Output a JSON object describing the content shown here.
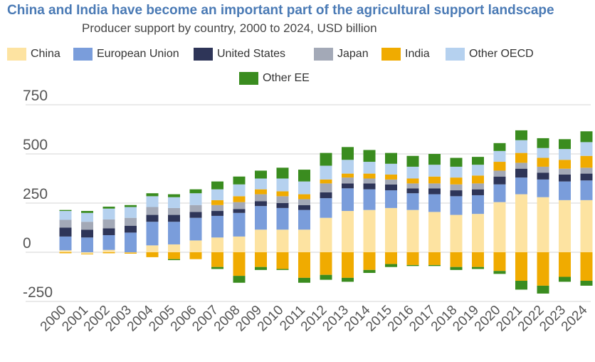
{
  "header": {
    "title": "China and India have become an important part of the agricultural support landscape",
    "subtitle": "Producer support by country, 2000 to 2024, USD billion"
  },
  "colors": {
    "China": "#fde3a1",
    "European Union": "#7a9ddb",
    "United States": "#2e3558",
    "Japan": "#a3a9b7",
    "India": "#f0ab00",
    "Other OECD": "#b5d1ef",
    "Other EE": "#3a8c1f",
    "gridline": "#d4d4d4",
    "axis_text": "#555555"
  },
  "legend": [
    {
      "label": "China",
      "color": "#fde3a1"
    },
    {
      "label": "European Union",
      "color": "#7a9ddb"
    },
    {
      "label": "United States",
      "color": "#2e3558"
    },
    {
      "label": "Japan",
      "color": "#a3a9b7"
    },
    {
      "label": "India",
      "color": "#f0ab00"
    },
    {
      "label": "Other OECD",
      "color": "#b5d1ef"
    },
    {
      "label": "Other EE",
      "color": "#3a8c1f"
    }
  ],
  "chart_data": {
    "type": "bar",
    "stacked": true,
    "title": "China and India have become an important part of the agricultural support landscape",
    "subtitle": "Producer support by country, 2000 to 2024, USD billion",
    "xlabel": "",
    "ylabel": "",
    "ylim": [
      -250,
      750
    ],
    "yticks": [
      -250,
      0,
      250,
      500,
      750
    ],
    "ytick_labels": [
      "-250",
      "0",
      "250",
      "500",
      "750"
    ],
    "grid": true,
    "legend_position": "top",
    "categories": [
      "2000",
      "2001",
      "2002",
      "2003",
      "2004",
      "2005",
      "2006",
      "2007",
      "2008",
      "2009",
      "2010",
      "2011",
      "2012",
      "2013",
      "2014",
      "2015",
      "2016",
      "2017",
      "2018",
      "2019",
      "2020",
      "2021",
      "2022",
      "2023",
      "2024"
    ],
    "series": [
      {
        "name": "China",
        "positive": [
          10,
          -8,
          12,
          -2,
          35,
          40,
          60,
          75,
          80,
          115,
          115,
          115,
          175,
          210,
          215,
          225,
          215,
          205,
          190,
          195,
          255,
          295,
          280,
          265,
          265
        ]
      },
      {
        "name": "European Union",
        "positive": [
          70,
          75,
          75,
          100,
          120,
          115,
          115,
          110,
          120,
          120,
          110,
          100,
          100,
          115,
          105,
          90,
          85,
          90,
          95,
          95,
          90,
          85,
          90,
          95,
          100
        ]
      },
      {
        "name": "United States",
        "positive": [
          45,
          40,
          35,
          35,
          35,
          35,
          30,
          25,
          20,
          25,
          25,
          25,
          30,
          25,
          30,
          30,
          25,
          30,
          30,
          30,
          40,
          45,
          35,
          35,
          35
        ]
      },
      {
        "name": "Japan",
        "positive": [
          40,
          40,
          45,
          40,
          40,
          35,
          35,
          30,
          35,
          35,
          35,
          30,
          45,
          30,
          25,
          25,
          25,
          25,
          30,
          30,
          30,
          30,
          30,
          30,
          30
        ]
      },
      {
        "name": "India",
        "positive": [
          0,
          0,
          0,
          0,
          0,
          0,
          0,
          25,
          30,
          25,
          25,
          25,
          20,
          20,
          25,
          25,
          25,
          35,
          35,
          40,
          45,
          50,
          45,
          45,
          60
        ]
      },
      {
        "name": "Other OECD",
        "positive": [
          45,
          45,
          55,
          55,
          55,
          55,
          60,
          55,
          60,
          55,
          65,
          65,
          70,
          70,
          60,
          55,
          60,
          60,
          55,
          55,
          55,
          65,
          50,
          55,
          70
        ]
      },
      {
        "name": "Other EE",
        "positive": [
          5,
          10,
          10,
          10,
          15,
          15,
          20,
          40,
          40,
          40,
          55,
          60,
          65,
          65,
          60,
          55,
          55,
          55,
          45,
          40,
          40,
          50,
          50,
          50,
          55
        ]
      },
      {
        "name": "India",
        "negative": [
          -5,
          -3,
          -5,
          -5,
          -25,
          -35,
          -35,
          -75,
          -120,
          -75,
          -85,
          -130,
          -115,
          -130,
          -90,
          -60,
          -65,
          -65,
          -75,
          -75,
          -95,
          -145,
          -170,
          -125,
          -145
        ]
      },
      {
        "name": "Other EE",
        "negative": [
          0,
          0,
          0,
          0,
          0,
          -5,
          0,
          -10,
          -35,
          -15,
          -5,
          -25,
          -25,
          -20,
          -15,
          -15,
          -5,
          -5,
          -15,
          -10,
          -15,
          -45,
          -40,
          -25,
          -25
        ]
      }
    ]
  }
}
